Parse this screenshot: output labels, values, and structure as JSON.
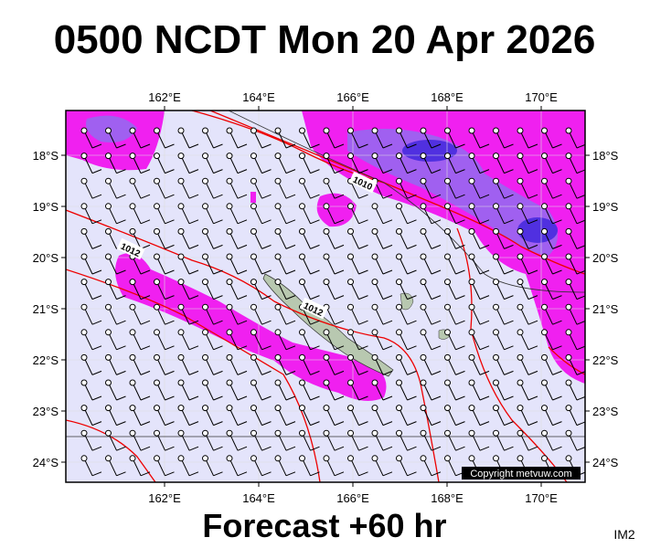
{
  "title": "0500 NCDT Mon 20 Apr 2026",
  "footer": "Forecast +60 hr",
  "corner_label": "IM2",
  "copyright": "Copyright metvuw.com",
  "longitude_labels": [
    "162°E",
    "164°E",
    "166°E",
    "168°E",
    "170°E"
  ],
  "latitude_labels": [
    "18°S",
    "19°S",
    "20°S",
    "21°S",
    "22°S",
    "23°S",
    "24°S"
  ],
  "isobar_labels": [
    "1010",
    "1012",
    "1012"
  ]
}
